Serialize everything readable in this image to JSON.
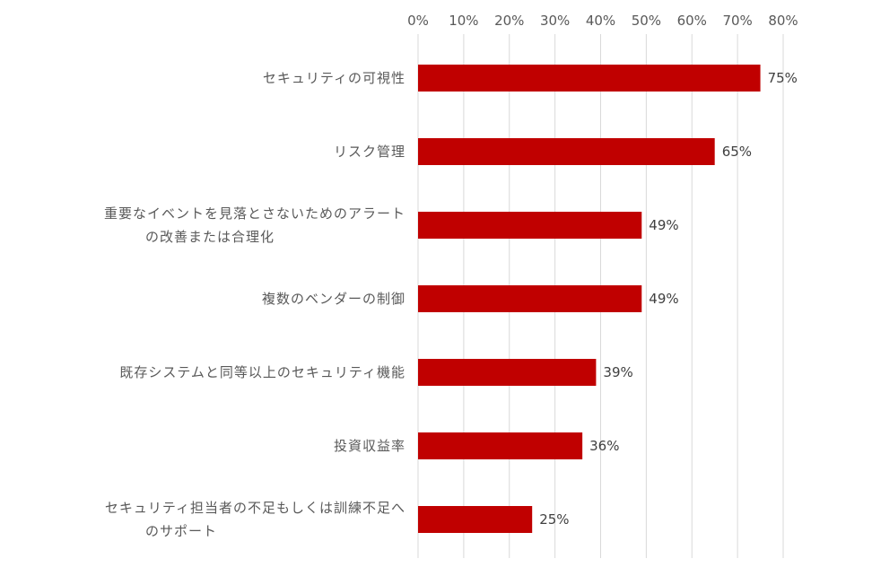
{
  "chart_data": {
    "type": "bar",
    "orientation": "horizontal",
    "categories": [
      [
        "セキュリティの可視性"
      ],
      [
        "リスク管理"
      ],
      [
        "重要なイベントを見落とさないためのアラート",
        "の改善または合理化"
      ],
      [
        "複数のベンダーの制御"
      ],
      [
        "既存システムと同等以上のセキュリティ機能"
      ],
      [
        "投資収益率"
      ],
      [
        "セキュリティ担当者の不足もしくは訓練不足へ",
        "のサポート"
      ]
    ],
    "values": [
      75,
      65,
      49,
      49,
      39,
      36,
      25
    ],
    "data_labels": [
      "75%",
      "65%",
      "49%",
      "49%",
      "39%",
      "36%",
      "25%"
    ],
    "xlim": [
      0,
      80
    ],
    "x_ticks": [
      0,
      10,
      20,
      30,
      40,
      50,
      60,
      70,
      80
    ],
    "x_tick_labels": [
      "0%",
      "10%",
      "20%",
      "30%",
      "40%",
      "50%",
      "60%",
      "70%",
      "80%"
    ],
    "x_axis_position": "top",
    "grid": true,
    "legend": "none",
    "bar_color": "#c00000",
    "gridline_color": "#d9d9d9",
    "title": "",
    "xlabel": "",
    "ylabel": ""
  }
}
